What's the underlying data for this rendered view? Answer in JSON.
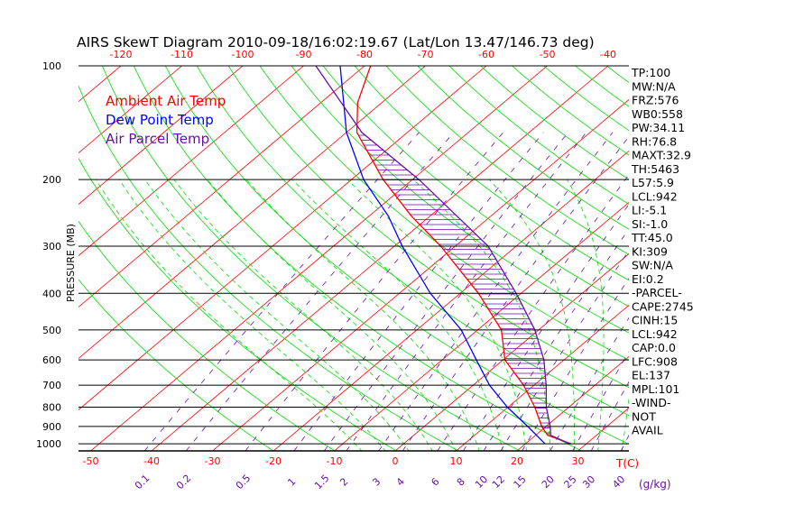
{
  "chart_data": {
    "type": "line",
    "subtype": "skew-t log-p",
    "title": "AIRS SkewT Diagram 2010-09-18/16:02:19.67 (Lat/Lon 13.47/146.73 deg)",
    "ylabel": "PRESSURE (MB)",
    "xlabel_temp": "T(C)",
    "xlabel_mixing": "(g/kg)",
    "ylim": [
      1045,
      100
    ],
    "pressure_ticks": [
      100,
      200,
      300,
      400,
      500,
      600,
      700,
      800,
      900,
      1000
    ],
    "top_temp_ticks": [
      -120,
      -110,
      -100,
      -90,
      -80,
      -70,
      -60,
      -50,
      -40
    ],
    "bottom_temp_ticks": [
      -50,
      -40,
      -30,
      -20,
      -10,
      0,
      10,
      20,
      30
    ],
    "mixing_ratio_ticks": [
      "0.1",
      "0.2",
      "0.5",
      "1",
      "1.5",
      "2",
      "3",
      "4",
      "6",
      "8",
      "10",
      "12",
      "15",
      "20",
      "25",
      "30",
      "40"
    ],
    "legend": [
      {
        "label": "Ambient Air Temp",
        "color": "#ff0000"
      },
      {
        "label": "Dew Point Temp",
        "color": "#0000ff"
      },
      {
        "label": "Air Parcel Temp",
        "color": "#6a0dad"
      }
    ],
    "series": [
      {
        "name": "Ambient Air Temp",
        "color": "#ff0000",
        "p": [
          1000,
          950,
          900,
          800,
          700,
          600,
          500,
          400,
          300,
          250,
          200,
          150,
          125,
          100
        ],
        "t": [
          27.5,
          22,
          19.3,
          14.4,
          8.3,
          0.3,
          -6.1,
          -17,
          -32.4,
          -43,
          -54.8,
          -68.3,
          -74,
          -79
        ]
      },
      {
        "name": "Dew Point Temp",
        "color": "#0000ff",
        "p": [
          1000,
          900,
          800,
          700,
          600,
          500,
          400,
          300,
          250,
          200,
          150,
          100
        ],
        "t": [
          23.2,
          17,
          9.9,
          2.7,
          -4.4,
          -12.7,
          -24.9,
          -38.7,
          -46.8,
          -58,
          -70,
          -84
        ]
      },
      {
        "name": "Air Parcel Temp",
        "color": "#6a0dad",
        "p": [
          1000,
          950,
          900,
          800,
          700,
          600,
          500,
          400,
          300,
          200,
          150,
          100
        ],
        "t": [
          27.3,
          22.5,
          20.7,
          16.3,
          12,
          6.7,
          -0.6,
          -10.8,
          -24.6,
          -48.9,
          -67.5,
          -88
        ]
      }
    ]
  },
  "indices": [
    "TP:100",
    "MW:N/A",
    "FRZ:576",
    "WB0:558",
    "PW:34.11",
    "RH:76.8",
    "MAXT:32.9",
    "TH:5463",
    "L57:5.9",
    "LCL:942",
    "LI:-5.1",
    "SI:-1.0",
    "TT:45.0",
    "KI:309",
    "SW:N/A",
    "EI:0.2",
    "-PARCEL-",
    "CAPE:2745",
    "CINH:15",
    "LCL:942",
    "CAP:0.0",
    "LFC:908",
    "EL:137",
    "MPL:101",
    "-WIND-",
    "NOT",
    "AVAIL"
  ],
  "colors": {
    "isotherm": "#ff0000",
    "dry_adiabat": "#00dd00",
    "moist_adiabat": "#00dd00",
    "mixing_ratio": "#6a0dad",
    "isobar": "#000000"
  }
}
